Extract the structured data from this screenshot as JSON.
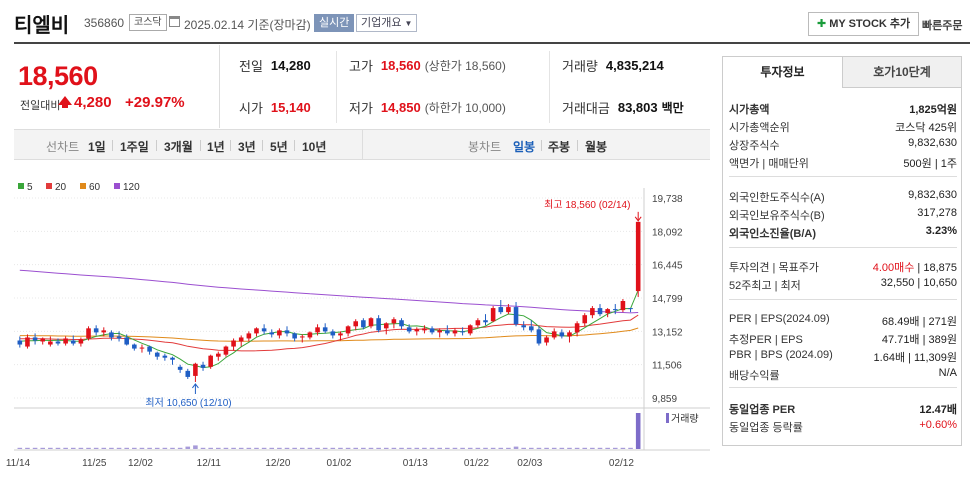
{
  "header": {
    "name": "티엘비",
    "code": "356860",
    "market": "코스닥",
    "date": "2025.02.14",
    "basis": "기준(장마감)",
    "realtime": "실시간",
    "overview": "기업개요",
    "mystock": "MY STOCK 추가",
    "quick_order": "빠른주문"
  },
  "price": {
    "current": "18,560",
    "prev_label": "전일대비",
    "change": "4,280",
    "pct": "+29.97%"
  },
  "info": {
    "prev_label": "전일",
    "prev": "14,280",
    "open_label": "시가",
    "open": "15,140",
    "high_label": "고가",
    "high": "18,560",
    "upper_limit": "(상한가 18,560)",
    "low_label": "저가",
    "low": "14,850",
    "lower_limit": "(하한가 10,000)",
    "volume_label": "거래량",
    "volume": "4,835,214",
    "amount_label": "거래대금",
    "amount": "83,803",
    "amount_unit": "백만"
  },
  "period": {
    "label": "선차트",
    "items": [
      "1일",
      "1주일",
      "3개월",
      "1년",
      "3년",
      "5년",
      "10년"
    ],
    "candle_label": "봉차트",
    "candle_items": [
      "일봉",
      "주봉",
      "월봉"
    ],
    "active_candle": "일봉"
  },
  "chart_data": {
    "type": "candlestick",
    "legend": [
      {
        "name": "5",
        "color": "#3aa63a"
      },
      {
        "name": "20",
        "color": "#e23b3b"
      },
      {
        "name": "60",
        "color": "#e08a1a"
      },
      {
        "name": "120",
        "color": "#9b4fd0"
      }
    ],
    "y_ticks": [
      "19,738",
      "18,092",
      "16,445",
      "14,799",
      "13,152",
      "11,506",
      "9,859"
    ],
    "ylim": [
      9859,
      19738
    ],
    "x_ticks": [
      "11/14",
      "11/25",
      "12/02",
      "12/11",
      "12/20",
      "01/02",
      "01/13",
      "01/22",
      "02/03",
      "02/12"
    ],
    "high_annotation": "최고 18,560 (02/14)",
    "low_annotation": "최저 10,650 (12/10)",
    "volume_label": "거래량",
    "candles": [
      [
        12700,
        12900,
        12350,
        12500
      ],
      [
        12400,
        13000,
        12300,
        12850
      ],
      [
        12850,
        13050,
        12500,
        12700
      ],
      [
        12650,
        12850,
        12500,
        12800
      ],
      [
        12500,
        12900,
        12400,
        12650
      ],
      [
        12650,
        12800,
        12450,
        12550
      ],
      [
        12550,
        12900,
        12450,
        12800
      ],
      [
        12700,
        12950,
        12450,
        12550
      ],
      [
        12550,
        12850,
        12400,
        12750
      ],
      [
        12800,
        13400,
        12700,
        13300
      ],
      [
        13300,
        13450,
        12950,
        13100
      ],
      [
        13100,
        13350,
        12900,
        13200
      ],
      [
        13100,
        13200,
        12700,
        12850
      ],
      [
        12900,
        13150,
        12650,
        12800
      ],
      [
        12850,
        13000,
        12450,
        12500
      ],
      [
        12500,
        12550,
        12200,
        12300
      ],
      [
        12300,
        12500,
        12100,
        12350
      ],
      [
        12400,
        12450,
        12000,
        12150
      ],
      [
        12100,
        12150,
        11750,
        11900
      ],
      [
        11950,
        12050,
        11700,
        11850
      ],
      [
        11850,
        11900,
        11500,
        11750
      ],
      [
        11400,
        11500,
        11100,
        11250
      ],
      [
        11200,
        11300,
        10800,
        10900
      ],
      [
        10950,
        11600,
        10650,
        11550
      ],
      [
        11500,
        11650,
        11200,
        11350
      ],
      [
        11400,
        12000,
        11300,
        11950
      ],
      [
        11900,
        12150,
        11700,
        12050
      ],
      [
        12000,
        12450,
        11900,
        12400
      ],
      [
        12400,
        12800,
        12200,
        12700
      ],
      [
        12650,
        12950,
        12400,
        12850
      ],
      [
        12800,
        13150,
        12650,
        13050
      ],
      [
        13050,
        13350,
        12900,
        13300
      ],
      [
        13300,
        13500,
        13000,
        13150
      ],
      [
        13100,
        13250,
        12850,
        13000
      ],
      [
        12950,
        13300,
        12800,
        13200
      ],
      [
        13200,
        13400,
        12900,
        13050
      ],
      [
        13050,
        13100,
        12650,
        12800
      ],
      [
        12850,
        13000,
        12600,
        12900
      ],
      [
        12850,
        13150,
        12750,
        13100
      ],
      [
        13100,
        13500,
        12950,
        13350
      ],
      [
        13350,
        13550,
        13050,
        13150
      ],
      [
        13150,
        13250,
        12800,
        12950
      ],
      [
        12950,
        13150,
        12700,
        13050
      ],
      [
        13050,
        13450,
        12900,
        13400
      ],
      [
        13400,
        13750,
        13200,
        13650
      ],
      [
        13700,
        13800,
        13250,
        13350
      ],
      [
        13400,
        13850,
        13300,
        13800
      ],
      [
        13800,
        13950,
        13100,
        13200
      ],
      [
        13300,
        13600,
        13000,
        13550
      ],
      [
        13550,
        13850,
        13300,
        13750
      ],
      [
        13700,
        13800,
        13250,
        13400
      ],
      [
        13350,
        13500,
        13050,
        13150
      ],
      [
        13150,
        13350,
        12950,
        13250
      ],
      [
        13200,
        13450,
        13050,
        13300
      ],
      [
        13300,
        13400,
        13000,
        13100
      ],
      [
        13100,
        13300,
        12850,
        13200
      ],
      [
        13200,
        13450,
        12950,
        13050
      ],
      [
        13050,
        13300,
        12900,
        13200
      ],
      [
        13150,
        13350,
        12950,
        13100
      ],
      [
        13050,
        13500,
        12950,
        13450
      ],
      [
        13450,
        13800,
        13350,
        13700
      ],
      [
        13700,
        14000,
        13450,
        13600
      ],
      [
        13650,
        14400,
        13600,
        14300
      ],
      [
        14350,
        14700,
        14000,
        14100
      ],
      [
        14100,
        14500,
        14000,
        14350
      ],
      [
        14350,
        14600,
        13400,
        13500
      ],
      [
        13450,
        13650,
        13200,
        13350
      ],
      [
        13400,
        13700,
        13100,
        13200
      ],
      [
        13250,
        13400,
        12450,
        12550
      ],
      [
        12600,
        12950,
        12450,
        12850
      ],
      [
        12850,
        13300,
        12750,
        13150
      ],
      [
        13100,
        13250,
        12800,
        12900
      ],
      [
        12900,
        13200,
        12600,
        13100
      ],
      [
        13100,
        13650,
        12900,
        13550
      ],
      [
        13550,
        14050,
        13400,
        13950
      ],
      [
        13950,
        14400,
        13800,
        14300
      ],
      [
        14300,
        14500,
        13900,
        14000
      ],
      [
        14050,
        14300,
        13850,
        14250
      ],
      [
        14250,
        14500,
        14000,
        14200
      ],
      [
        14200,
        14750,
        14100,
        14650
      ],
      [
        14300,
        14280,
        14100,
        14280
      ],
      [
        15140,
        18560,
        14850,
        18560
      ]
    ],
    "volumes": [
      1,
      1,
      1,
      1,
      1,
      1,
      1,
      1,
      1,
      1,
      1,
      1,
      1,
      1,
      1,
      1,
      1,
      1,
      1,
      1,
      1,
      1,
      2,
      3,
      1,
      1,
      1,
      1,
      1,
      1,
      1,
      1,
      1,
      1,
      1,
      1,
      1,
      1,
      1,
      1,
      1,
      1,
      1,
      1,
      1,
      1,
      1,
      1,
      1,
      1,
      1,
      1,
      1,
      1,
      1,
      1,
      1,
      1,
      1,
      1,
      1,
      1,
      1,
      1,
      1,
      2,
      1,
      1,
      1,
      1,
      1,
      1,
      1,
      1,
      1,
      1,
      1,
      1,
      1,
      1,
      1,
      30
    ]
  },
  "right": {
    "tab_invest": "투자정보",
    "tab_ask": "호가10단계",
    "rows": [
      {
        "l": "시가총액",
        "r": "1,825억원",
        "bold": true
      },
      {
        "l": "시가총액순위",
        "r": "코스닥 425위"
      },
      {
        "l": "상장주식수",
        "r": "9,832,630"
      },
      {
        "l": "액면가 | 매매단위",
        "r": "500원 | 1주"
      },
      {
        "l": "외국인한도주식수(A)",
        "r": "9,832,630"
      },
      {
        "l": "외국인보유주식수(B)",
        "r": "317,278"
      },
      {
        "l": "외국인소진율(B/A)",
        "r": "3.23%",
        "bold": true
      },
      {
        "l": "투자의견 | 목표주가",
        "r1": "4.00매수",
        "r2": "| 18,875"
      },
      {
        "l": "52주최고 | 최저",
        "r": "32,550 | 10,650"
      },
      {
        "l": "PER | EPS(2024.09)",
        "r": "68.49배 | 271원"
      },
      {
        "l": "추정PER | EPS",
        "r": "47.71배 | 389원"
      },
      {
        "l": "PBR | BPS (2024.09)",
        "r": "1.64배 | 11,309원"
      },
      {
        "l": "배당수익률",
        "r": "N/A"
      },
      {
        "l": "동일업종 PER",
        "r": "12.47배",
        "bold": true
      },
      {
        "l": "동일업종 등락률",
        "r": "+0.60%"
      }
    ]
  }
}
